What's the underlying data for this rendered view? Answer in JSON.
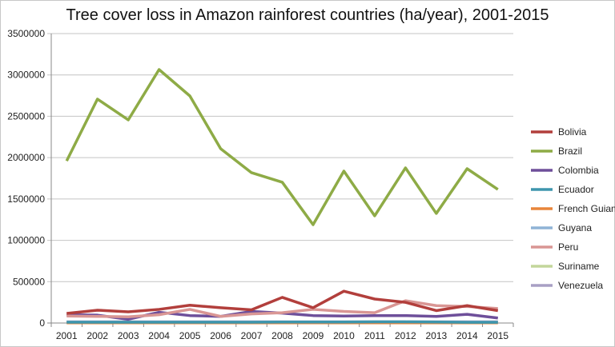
{
  "chart_data": {
    "type": "line",
    "title": "Tree cover loss in Amazon rainforest countries (ha/year), 2001-2015",
    "xlabel": "",
    "ylabel": "",
    "categories": [
      "2001",
      "2002",
      "2003",
      "2004",
      "2005",
      "2006",
      "2007",
      "2008",
      "2009",
      "2010",
      "2011",
      "2012",
      "2013",
      "2014",
      "2015"
    ],
    "ylim": [
      0,
      3500000
    ],
    "yticks": [
      "0",
      "500000",
      "1000000",
      "1500000",
      "2000000",
      "2500000",
      "3000000",
      "3500000"
    ],
    "grid": true,
    "legend": "right",
    "series": [
      {
        "name": "Bolivia",
        "color": "#b23f3c",
        "values": [
          116000,
          155000,
          135000,
          165000,
          215000,
          185000,
          160000,
          310000,
          185000,
          385000,
          290000,
          250000,
          150000,
          210000,
          150000
        ]
      },
      {
        "name": "Brazil",
        "color": "#8eab46",
        "values": [
          1960000,
          2708000,
          2456000,
          3065000,
          2746000,
          2108000,
          1818000,
          1702000,
          1189000,
          1837000,
          1296000,
          1876000,
          1325000,
          1866000,
          1615000
        ]
      },
      {
        "name": "Colombia",
        "color": "#6e4f9a",
        "values": [
          100000,
          95000,
          45000,
          130000,
          90000,
          80000,
          140000,
          120000,
          90000,
          85000,
          90000,
          90000,
          80000,
          105000,
          60000
        ]
      },
      {
        "name": "Ecuador",
        "color": "#3e96ad",
        "values": [
          10000,
          10000,
          10000,
          10000,
          10000,
          10000,
          10000,
          12000,
          12000,
          12000,
          14000,
          14000,
          12000,
          8000,
          8000
        ]
      },
      {
        "name": "French Guiana",
        "color": "#e8853a",
        "values": [
          3000,
          3000,
          3000,
          3000,
          3000,
          3000,
          3000,
          3000,
          3000,
          3000,
          3000,
          3000,
          3000,
          3000,
          3000
        ]
      },
      {
        "name": "Guyana",
        "color": "#8fb3d6",
        "values": [
          8000,
          8000,
          8000,
          8000,
          8000,
          8000,
          8000,
          8000,
          8000,
          8000,
          8000,
          8000,
          8000,
          8000,
          8000
        ]
      },
      {
        "name": "Peru",
        "color": "#d99694",
        "values": [
          85000,
          80000,
          75000,
          100000,
          165000,
          80000,
          110000,
          125000,
          165000,
          140000,
          125000,
          270000,
          210000,
          200000,
          175000
        ]
      },
      {
        "name": "Suriname",
        "color": "#c3d69b",
        "values": [
          5000,
          5000,
          5000,
          5000,
          5000,
          5000,
          5000,
          5000,
          5000,
          5000,
          5000,
          5000,
          5000,
          5000,
          5000
        ]
      },
      {
        "name": "Venezuela",
        "color": "#a89fc4",
        "values": [
          15000,
          15000,
          15000,
          15000,
          15000,
          15000,
          15000,
          15000,
          15000,
          15000,
          15000,
          15000,
          15000,
          15000,
          15000
        ]
      }
    ]
  }
}
